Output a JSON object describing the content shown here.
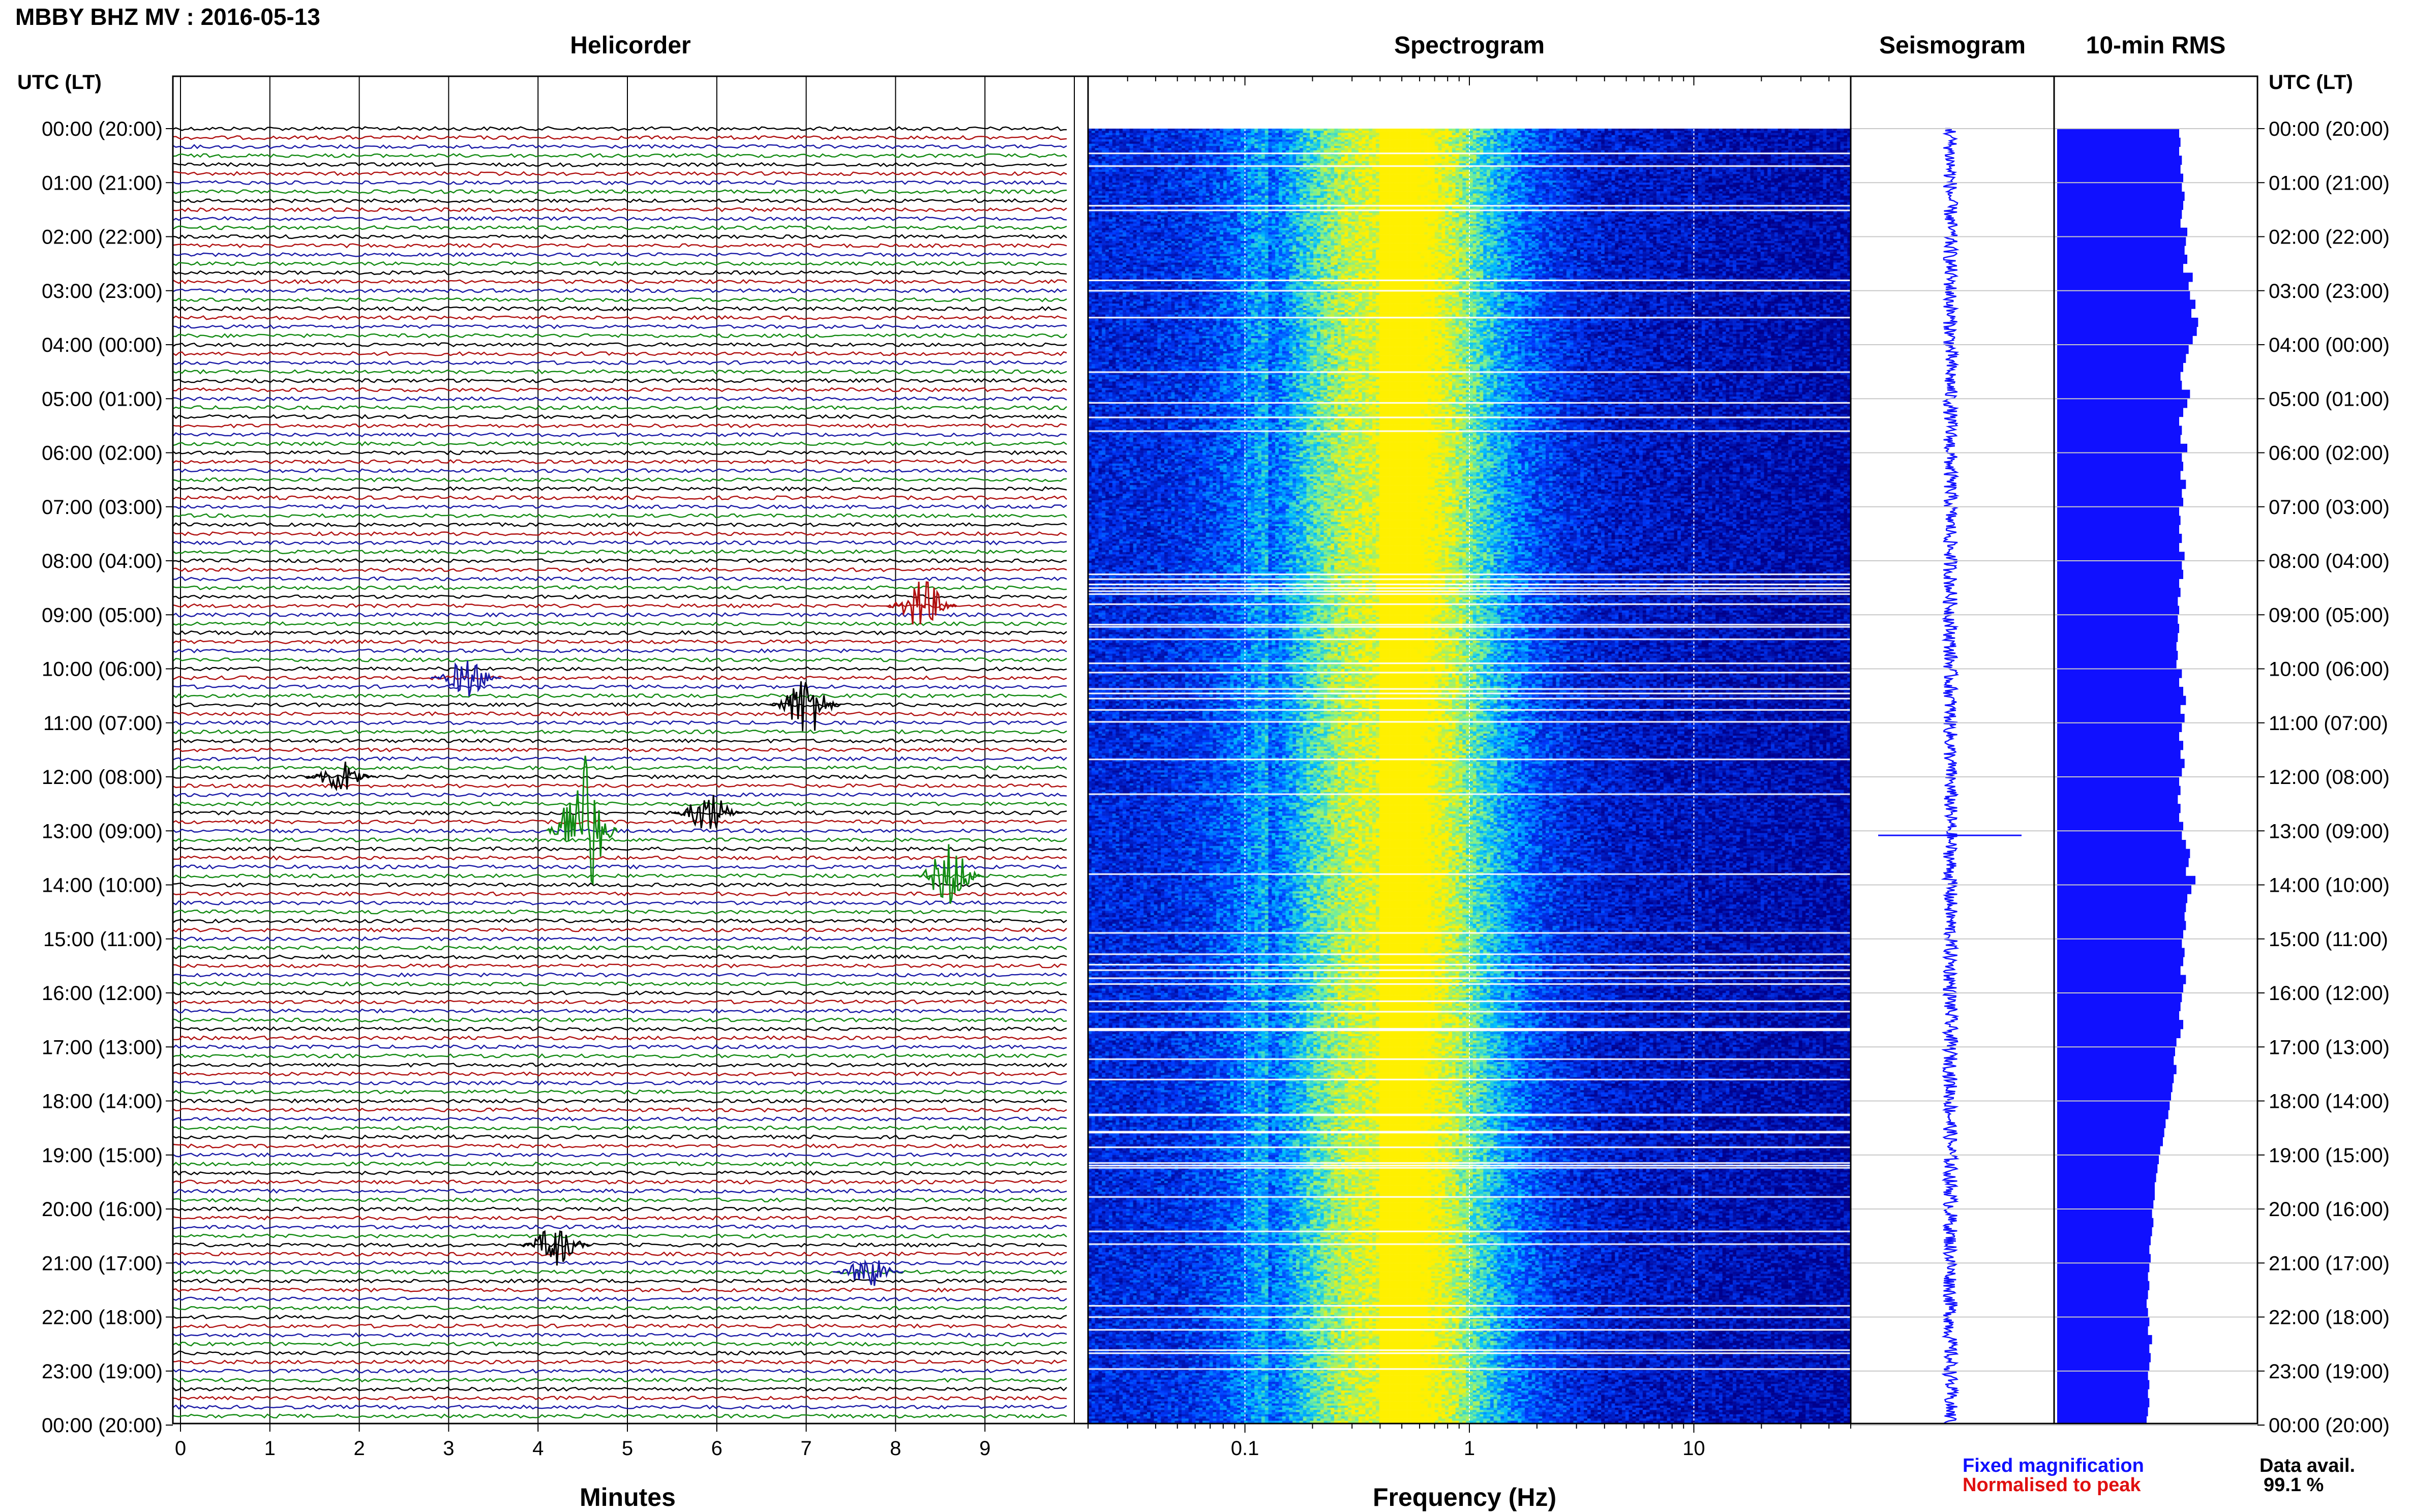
{
  "header": {
    "title": "MBBY BHZ MV : 2016-05-13"
  },
  "panels": {
    "helicorder": "Helicorder",
    "spectrogram": "Spectrogram",
    "seismogram": "Seismogram",
    "rms": "10-min RMS"
  },
  "axes": {
    "left_header": "UTC (LT)",
    "right_header": "UTC (LT)",
    "minutes_label": "Minutes",
    "frequency_label": "Frequency (Hz)"
  },
  "footer": {
    "fixed_magnification": "Fixed magnification",
    "normalised_to_peak": "Normalised to peak",
    "data_avail_label": "Data avail.",
    "data_avail_value": "99.1 %"
  },
  "colors": {
    "trace_cycle": [
      "#000000",
      "#b01010",
      "#1a1aa6",
      "#128a12"
    ],
    "rms_bar": "#1010ff",
    "fixed_magnification": "#1010ff",
    "normalised_to_peak": "#e01010",
    "grid": "#c8c8c8"
  },
  "chart_data": [
    {
      "type": "line",
      "panel": "helicorder",
      "title": "Helicorder",
      "xlabel": "Minutes",
      "x_ticks": [
        "0",
        "1",
        "2",
        "3",
        "4",
        "5",
        "6",
        "7",
        "8",
        "9"
      ],
      "xlim": [
        0,
        10
      ],
      "y_ticks": [
        "00:00 (20:00)",
        "01:00 (21:00)",
        "02:00 (22:00)",
        "03:00 (23:00)",
        "04:00 (00:00)",
        "05:00 (01:00)",
        "06:00 (02:00)",
        "07:00 (03:00)",
        "08:00 (04:00)",
        "09:00 (05:00)",
        "10:00 (06:00)",
        "11:00 (07:00)",
        "12:00 (08:00)",
        "13:00 (09:00)",
        "14:00 (10:00)",
        "15:00 (11:00)",
        "16:00 (12:00)",
        "17:00 (13:00)",
        "18:00 (14:00)",
        "19:00 (15:00)",
        "20:00 (16:00)",
        "21:00 (17:00)",
        "22:00 (18:00)",
        "23:00 (19:00)",
        "00:00 (20:00)"
      ],
      "row_minutes": 10,
      "rows": 144,
      "events": [
        {
          "time_utc": "08:50",
          "minute": 8.3,
          "color": "red",
          "amplitude": 2.5
        },
        {
          "time_utc": "10:10",
          "minute": 3.2,
          "color": "blue",
          "amplitude": 1.8
        },
        {
          "time_utc": "10:40",
          "minute": 7.0,
          "color": "black",
          "amplitude": 3.0
        },
        {
          "time_utc": "12:00",
          "minute": 1.8,
          "color": "black",
          "amplitude": 1.6
        },
        {
          "time_utc": "12:40",
          "minute": 5.9,
          "color": "black",
          "amplitude": 2.0
        },
        {
          "time_utc": "13:00",
          "minute": 4.5,
          "color": "green",
          "amplitude": 7.0
        },
        {
          "time_utc": "13:50",
          "minute": 8.6,
          "color": "green",
          "amplitude": 3.0
        },
        {
          "time_utc": "20:40",
          "minute": 4.2,
          "color": "black",
          "amplitude": 2.0
        },
        {
          "time_utc": "21:10",
          "minute": 7.7,
          "color": "blue",
          "amplitude": 1.5
        }
      ]
    },
    {
      "type": "heatmap",
      "panel": "spectrogram",
      "title": "Spectrogram",
      "xlabel": "Frequency (Hz)",
      "x_scale": "log",
      "xlim": [
        0.02,
        50
      ],
      "x_ticks": [
        "0.1",
        "1",
        "10"
      ],
      "x_tick_values": [
        0.1,
        1,
        10
      ],
      "peak_frequency_hz": 0.4,
      "colormap": [
        "dark blue",
        "blue",
        "cyan",
        "yellow"
      ]
    },
    {
      "type": "line",
      "panel": "seismogram",
      "title": "Seismogram",
      "series": [
        {
          "name": "Fixed magnification"
        }
      ],
      "transient_time_utc": "13:05"
    },
    {
      "type": "bar",
      "panel": "rms",
      "title": "10-min RMS",
      "orientation": "horizontal",
      "bins": 144,
      "values": [
        0.9,
        0.91,
        0.9,
        0.92,
        0.91,
        0.93,
        0.92,
        0.94,
        0.93,
        0.92,
        0.91,
        0.96,
        0.95,
        0.94,
        0.96,
        0.93,
        1.0,
        0.97,
        0.98,
        1.02,
        0.99,
        1.04,
        1.03,
        1.0,
        0.97,
        0.95,
        0.93,
        0.91,
        0.92,
        0.98,
        0.96,
        0.93,
        0.9,
        0.92,
        0.91,
        0.96,
        0.92,
        0.93,
        0.91,
        0.95,
        0.92,
        0.93,
        0.9,
        0.91,
        0.9,
        0.92,
        0.9,
        0.94,
        0.92,
        0.93,
        0.9,
        0.91,
        0.89,
        0.9,
        0.89,
        0.9,
        0.89,
        0.88,
        0.89,
        0.88,
        0.92,
        0.9,
        0.93,
        0.95,
        0.91,
        0.94,
        0.92,
        0.9,
        0.93,
        0.91,
        0.94,
        0.92,
        0.9,
        0.91,
        0.89,
        0.91,
        0.9,
        0.93,
        0.92,
        0.95,
        0.98,
        0.97,
        0.95,
        1.02,
        0.99,
        0.96,
        0.95,
        0.94,
        0.95,
        0.93,
        0.92,
        0.94,
        0.93,
        0.91,
        0.95,
        0.93,
        0.92,
        0.91,
        0.9,
        0.93,
        0.91,
        0.88,
        0.87,
        0.86,
        0.88,
        0.86,
        0.85,
        0.84,
        0.83,
        0.82,
        0.8,
        0.79,
        0.78,
        0.76,
        0.75,
        0.74,
        0.73,
        0.72,
        0.72,
        0.71,
        0.7,
        0.71,
        0.7,
        0.69,
        0.68,
        0.69,
        0.68,
        0.67,
        0.68,
        0.67,
        0.66,
        0.67,
        0.68,
        0.67,
        0.7,
        0.68,
        0.69,
        0.68,
        0.67,
        0.68,
        0.67,
        0.68,
        0.67,
        0.66
      ],
      "xlim": [
        0,
        1.5
      ]
    }
  ]
}
